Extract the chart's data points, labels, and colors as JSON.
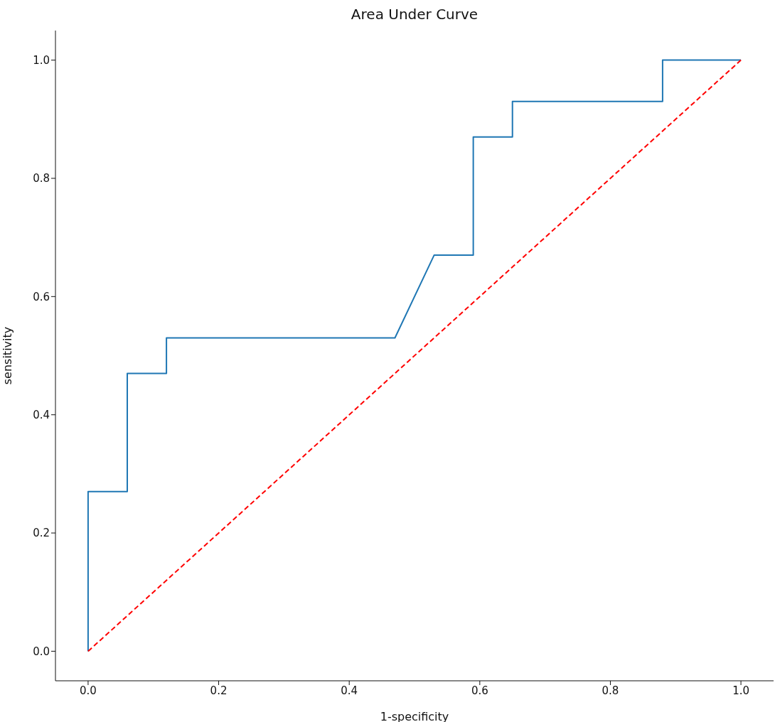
{
  "chart_data": {
    "type": "line",
    "title": "Area Under Curve",
    "xlabel": "1-specificity",
    "ylabel": "sensitivity",
    "xlim": [
      -0.05,
      1.05
    ],
    "ylim": [
      -0.05,
      1.05
    ],
    "xticks": [
      {
        "value": 0,
        "label": "0.0"
      },
      0.2,
      0.4,
      0.6,
      0.8,
      {
        "value": 1,
        "label": "1.0"
      }
    ],
    "yticks": [
      {
        "value": 0,
        "label": "0.0"
      },
      0.2,
      0.4,
      0.6,
      0.8,
      {
        "value": 1,
        "label": "1.0"
      }
    ],
    "series": [
      {
        "color": "#1f77b4",
        "line_style": "solid",
        "x": [
          0,
          0,
          0.06,
          0.06,
          0.12,
          0.12,
          0.47,
          0.53,
          0.59,
          0.59,
          0.65,
          0.65,
          0.88,
          0.88,
          1
        ],
        "values": [
          0,
          0.27,
          0.27,
          0.47,
          0.47,
          0.53,
          0.53,
          0.67,
          0.67,
          0.87,
          0.87,
          0.93,
          0.93,
          1,
          1
        ]
      },
      {
        "color": "#ff0000",
        "line_style": "dashed",
        "x": [
          0,
          1
        ],
        "values": [
          0,
          1
        ]
      }
    ]
  }
}
